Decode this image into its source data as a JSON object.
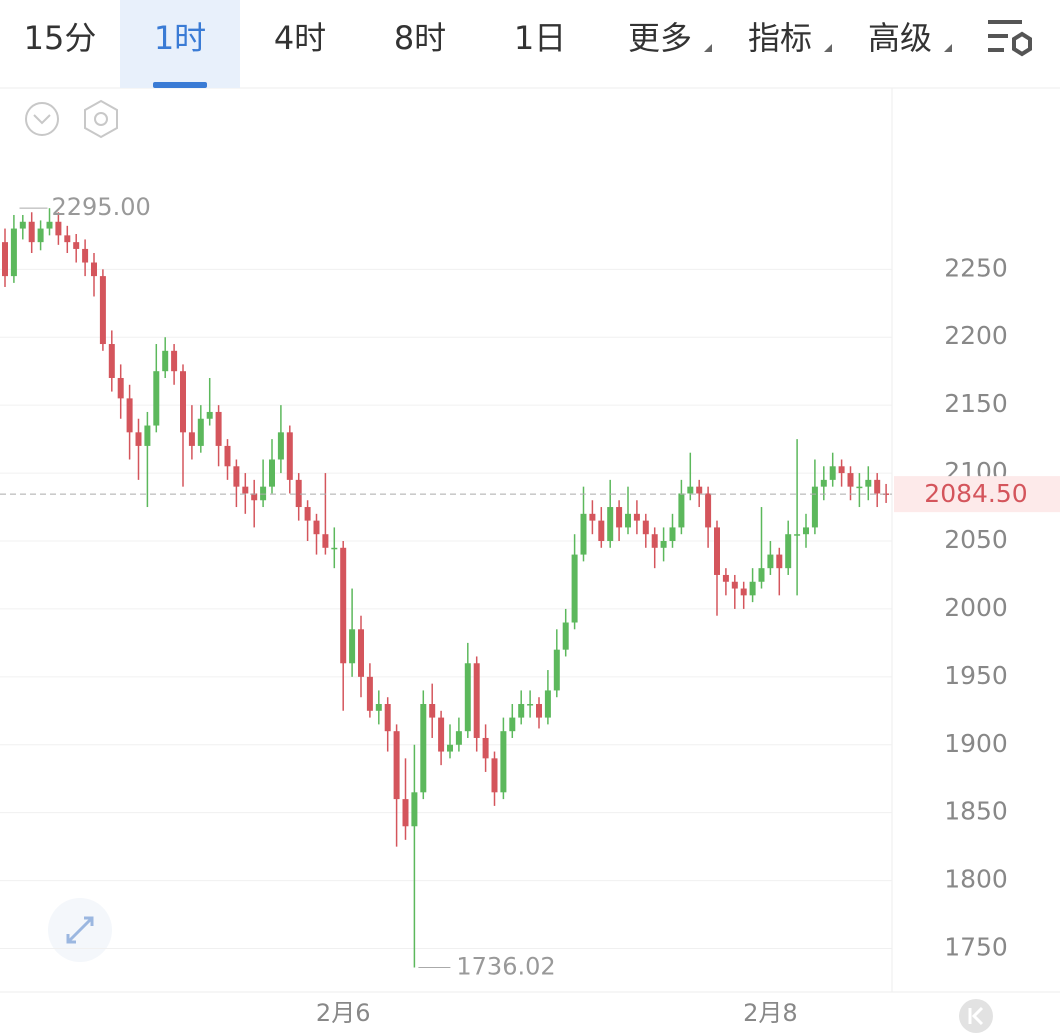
{
  "toolbar": {
    "tabs": [
      "15分",
      "1时",
      "4时",
      "8时",
      "1日",
      "更多",
      "指标",
      "高级"
    ],
    "active": 1
  },
  "chart_data": {
    "type": "candlestick",
    "x": [
      null,
      null,
      null,
      null,
      null,
      null,
      null,
      null,
      null,
      null,
      null,
      null,
      null,
      null,
      null,
      null,
      null,
      null,
      null,
      null,
      null,
      null,
      null,
      null,
      null,
      null,
      null,
      null,
      null,
      null,
      null,
      null,
      null,
      null,
      null,
      null,
      null,
      null,
      "2月6",
      null,
      null,
      null,
      null,
      null,
      null,
      null,
      null,
      null,
      null,
      null,
      null,
      null,
      null,
      null,
      null,
      null,
      null,
      null,
      null,
      null,
      null,
      null,
      null,
      null,
      null,
      null,
      null,
      null,
      null,
      null,
      null,
      null,
      null,
      null,
      null,
      null,
      null,
      null,
      null,
      null,
      null,
      null,
      null,
      null,
      null,
      null,
      "2月8",
      null,
      null,
      null,
      null,
      null,
      null,
      null,
      null,
      null,
      null,
      null,
      null,
      null
    ],
    "open": [
      2270,
      2245,
      2280,
      2285,
      2270,
      2280,
      2285,
      2275,
      2270,
      2265,
      2255,
      2245,
      2195,
      2170,
      2155,
      2130,
      2120,
      2135,
      2175,
      2190,
      2175,
      2130,
      2120,
      2140,
      2145,
      2120,
      2105,
      2090,
      2085,
      2080,
      2090,
      2110,
      2130,
      2095,
      2075,
      2065,
      2055,
      2045,
      2045,
      1960,
      1985,
      1950,
      1925,
      1930,
      1910,
      1860,
      1840,
      1865,
      1930,
      1920,
      1895,
      1900,
      1910,
      1960,
      1905,
      1890,
      1865,
      1910,
      1920,
      1930,
      1930,
      1920,
      1940,
      1970,
      1990,
      2040,
      2070,
      2065,
      2050,
      2075,
      2060,
      2070,
      2065,
      2055,
      2045,
      2050,
      2060,
      2085,
      2090,
      2085,
      2060,
      2025,
      2020,
      2015,
      2010,
      2020,
      2030,
      2040,
      2030,
      2055,
      2055,
      2060,
      2090,
      2095,
      2105,
      2100,
      2090,
      2090,
      2095,
      2085
    ],
    "high": [
      2280,
      2290,
      2290,
      2292,
      2286,
      2295,
      2292,
      2282,
      2276,
      2272,
      2262,
      2250,
      2205,
      2180,
      2165,
      2140,
      2145,
      2195,
      2200,
      2195,
      2180,
      2150,
      2150,
      2170,
      2150,
      2125,
      2110,
      2100,
      2095,
      2110,
      2125,
      2150,
      2135,
      2100,
      2080,
      2070,
      2100,
      2060,
      2050,
      2015,
      1995,
      1960,
      1940,
      1935,
      1915,
      1890,
      1900,
      1940,
      1945,
      1925,
      1915,
      1920,
      1975,
      1965,
      1915,
      1895,
      1920,
      1930,
      1940,
      1940,
      1935,
      1955,
      1985,
      2000,
      2055,
      2090,
      2080,
      2075,
      2095,
      2080,
      2090,
      2080,
      2070,
      2060,
      2060,
      2070,
      2095,
      2115,
      2095,
      2090,
      2065,
      2030,
      2025,
      2020,
      2030,
      2075,
      2050,
      2045,
      2065,
      2125,
      2070,
      2110,
      2105,
      2115,
      2110,
      2105,
      2100,
      2105,
      2100,
      2092
    ],
    "low": [
      2237,
      2240,
      2272,
      2262,
      2264,
      2275,
      2268,
      2262,
      2255,
      2245,
      2230,
      2190,
      2160,
      2140,
      2110,
      2095,
      2075,
      2130,
      2170,
      2165,
      2090,
      2110,
      2115,
      2135,
      2105,
      2095,
      2075,
      2070,
      2060,
      2075,
      2085,
      2100,
      2085,
      2065,
      2050,
      2040,
      2040,
      2030,
      1925,
      1950,
      1935,
      1920,
      1915,
      1895,
      1825,
      1830,
      1736.02,
      1860,
      1905,
      1885,
      1890,
      1895,
      1905,
      1895,
      1880,
      1855,
      1860,
      1905,
      1915,
      1920,
      1912,
      1915,
      1935,
      1965,
      1985,
      2035,
      2055,
      2045,
      2045,
      2050,
      2055,
      2055,
      2045,
      2030,
      2035,
      2045,
      2055,
      2080,
      2075,
      2045,
      1995,
      2010,
      2000,
      2000,
      2005,
      2015,
      2025,
      2010,
      2025,
      2010,
      2045,
      2055,
      2080,
      2090,
      2090,
      2080,
      2075,
      2080,
      2075,
      2078
    ],
    "close": [
      2245,
      2280,
      2285,
      2270,
      2280,
      2285,
      2275,
      2270,
      2265,
      2255,
      2245,
      2195,
      2170,
      2155,
      2130,
      2120,
      2135,
      2175,
      2190,
      2175,
      2130,
      2120,
      2140,
      2145,
      2120,
      2105,
      2090,
      2085,
      2080,
      2090,
      2110,
      2130,
      2095,
      2075,
      2065,
      2055,
      2045,
      2045,
      1960,
      1985,
      1950,
      1925,
      1930,
      1910,
      1860,
      1840,
      1865,
      1930,
      1920,
      1895,
      1900,
      1910,
      1960,
      1905,
      1890,
      1865,
      1910,
      1920,
      1930,
      1930,
      1920,
      1940,
      1970,
      1990,
      2040,
      2070,
      2065,
      2050,
      2075,
      2060,
      2070,
      2065,
      2055,
      2045,
      2050,
      2060,
      2085,
      2090,
      2085,
      2060,
      2025,
      2020,
      2015,
      2010,
      2020,
      2030,
      2040,
      2030,
      2055,
      2055,
      2060,
      2090,
      2095,
      2105,
      2100,
      2090,
      2090,
      2095,
      2085,
      2084.5
    ],
    "up_color": "#5cb85c",
    "down_color": "#d4555c",
    "ylim": [
      1718,
      2382
    ],
    "yticks": [
      1750,
      1800,
      1850,
      1900,
      1950,
      2000,
      2050,
      2100,
      2150,
      2200,
      2250
    ],
    "grid": true,
    "high_label": {
      "value": 2295,
      "label": "2295.00"
    },
    "low_label": {
      "value": 1736.02,
      "label": "1736.02"
    },
    "last_price": {
      "value": 2084.5,
      "label": "2084.50"
    }
  }
}
